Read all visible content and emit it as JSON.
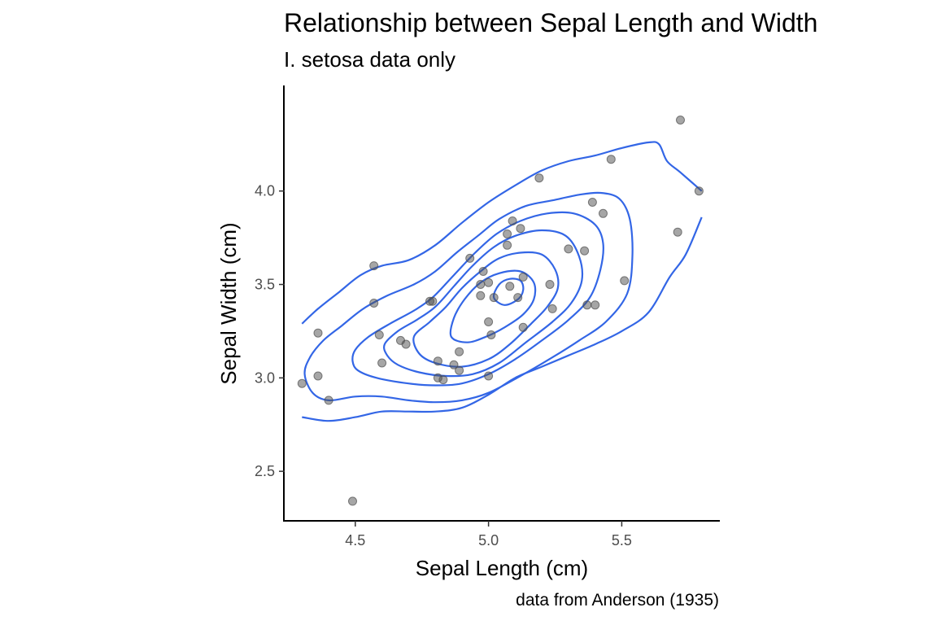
{
  "chart_data": {
    "type": "scatter",
    "title": "Relationship between Sepal Length and Width",
    "subtitle": "I. setosa data only",
    "caption": "data from Anderson (1935)",
    "xlabel": "Sepal Length (cm)",
    "ylabel": "Sepal Width (cm)",
    "xlim": [
      4.235,
      5.865
    ],
    "ylim": [
      2.235,
      4.565
    ],
    "x_ticks": [
      {
        "value": 4.5,
        "label": "4.5"
      },
      {
        "value": 5.0,
        "label": "5.0"
      },
      {
        "value": 5.5,
        "label": "5.5"
      }
    ],
    "y_ticks": [
      {
        "value": 2.5,
        "label": "2.5"
      },
      {
        "value": 3.0,
        "label": "3.0"
      },
      {
        "value": 3.5,
        "label": "3.5"
      },
      {
        "value": 4.0,
        "label": "4.0"
      }
    ],
    "grid": false,
    "legend": "none",
    "point_color": "#4d4d4d",
    "contour_color": "#3366e6",
    "points": [
      {
        "x": 4.3,
        "y": 2.97
      },
      {
        "x": 4.36,
        "y": 3.24
      },
      {
        "x": 4.36,
        "y": 3.01
      },
      {
        "x": 4.4,
        "y": 2.88
      },
      {
        "x": 4.49,
        "y": 2.34
      },
      {
        "x": 4.57,
        "y": 3.6
      },
      {
        "x": 4.57,
        "y": 3.4
      },
      {
        "x": 4.59,
        "y": 3.23
      },
      {
        "x": 4.6,
        "y": 3.08
      },
      {
        "x": 4.67,
        "y": 3.2
      },
      {
        "x": 4.69,
        "y": 3.18
      },
      {
        "x": 4.78,
        "y": 3.41
      },
      {
        "x": 4.79,
        "y": 3.41
      },
      {
        "x": 4.81,
        "y": 3.09
      },
      {
        "x": 4.81,
        "y": 3.0
      },
      {
        "x": 4.83,
        "y": 2.99
      },
      {
        "x": 4.87,
        "y": 3.07
      },
      {
        "x": 4.89,
        "y": 3.04
      },
      {
        "x": 4.89,
        "y": 3.14
      },
      {
        "x": 4.93,
        "y": 3.64
      },
      {
        "x": 4.97,
        "y": 3.44
      },
      {
        "x": 4.97,
        "y": 3.5
      },
      {
        "x": 4.98,
        "y": 3.57
      },
      {
        "x": 5.0,
        "y": 3.51
      },
      {
        "x": 5.0,
        "y": 3.3
      },
      {
        "x": 5.0,
        "y": 3.01
      },
      {
        "x": 5.01,
        "y": 3.23
      },
      {
        "x": 5.02,
        "y": 3.43
      },
      {
        "x": 5.07,
        "y": 3.77
      },
      {
        "x": 5.07,
        "y": 3.71
      },
      {
        "x": 5.08,
        "y": 3.49
      },
      {
        "x": 5.09,
        "y": 3.84
      },
      {
        "x": 5.11,
        "y": 3.43
      },
      {
        "x": 5.12,
        "y": 3.8
      },
      {
        "x": 5.13,
        "y": 3.54
      },
      {
        "x": 5.13,
        "y": 3.27
      },
      {
        "x": 5.19,
        "y": 4.07
      },
      {
        "x": 5.23,
        "y": 3.5
      },
      {
        "x": 5.24,
        "y": 3.37
      },
      {
        "x": 5.3,
        "y": 3.69
      },
      {
        "x": 5.36,
        "y": 3.68
      },
      {
        "x": 5.37,
        "y": 3.39
      },
      {
        "x": 5.39,
        "y": 3.94
      },
      {
        "x": 5.4,
        "y": 3.39
      },
      {
        "x": 5.43,
        "y": 3.88
      },
      {
        "x": 5.46,
        "y": 4.17
      },
      {
        "x": 5.51,
        "y": 3.52
      },
      {
        "x": 5.71,
        "y": 3.78
      },
      {
        "x": 5.72,
        "y": 4.38
      },
      {
        "x": 5.79,
        "y": 4.0
      }
    ],
    "contours": [
      {
        "level": 1,
        "open": true,
        "path": [
          [
            4.3,
            3.29
          ],
          [
            4.36,
            3.37
          ],
          [
            4.44,
            3.46
          ],
          [
            4.52,
            3.55
          ],
          [
            4.6,
            3.6
          ],
          [
            4.7,
            3.63
          ],
          [
            4.8,
            3.71
          ],
          [
            4.9,
            3.83
          ],
          [
            5.0,
            3.94
          ],
          [
            5.1,
            4.03
          ],
          [
            5.2,
            4.11
          ],
          [
            5.3,
            4.16
          ],
          [
            5.4,
            4.19
          ],
          [
            5.5,
            4.23
          ],
          [
            5.6,
            4.26
          ],
          [
            5.64,
            4.25
          ],
          [
            5.67,
            4.16
          ],
          [
            5.72,
            4.1
          ],
          [
            5.8,
            4.0
          ]
        ]
      },
      {
        "level": 1,
        "open": true,
        "path": [
          [
            4.3,
            2.79
          ],
          [
            4.4,
            2.77
          ],
          [
            4.5,
            2.79
          ],
          [
            4.6,
            2.82
          ],
          [
            4.7,
            2.82
          ],
          [
            4.8,
            2.82
          ],
          [
            4.9,
            2.84
          ],
          [
            5.0,
            2.91
          ],
          [
            5.1,
            3.0
          ],
          [
            5.2,
            3.06
          ],
          [
            5.3,
            3.12
          ],
          [
            5.4,
            3.18
          ],
          [
            5.5,
            3.25
          ],
          [
            5.6,
            3.35
          ],
          [
            5.68,
            3.54
          ],
          [
            5.74,
            3.66
          ],
          [
            5.8,
            3.86
          ]
        ]
      },
      {
        "level": 2,
        "path": [
          [
            4.31,
            3.02
          ],
          [
            4.33,
            3.11
          ],
          [
            4.38,
            3.2
          ],
          [
            4.45,
            3.28
          ],
          [
            4.53,
            3.37
          ],
          [
            4.62,
            3.44
          ],
          [
            4.72,
            3.5
          ],
          [
            4.8,
            3.57
          ],
          [
            4.88,
            3.67
          ],
          [
            4.96,
            3.76
          ],
          [
            5.04,
            3.85
          ],
          [
            5.14,
            3.92
          ],
          [
            5.24,
            3.95
          ],
          [
            5.34,
            3.98
          ],
          [
            5.42,
            3.99
          ],
          [
            5.49,
            3.96
          ],
          [
            5.53,
            3.85
          ],
          [
            5.54,
            3.65
          ],
          [
            5.52,
            3.45
          ],
          [
            5.44,
            3.3
          ],
          [
            5.34,
            3.2
          ],
          [
            5.24,
            3.11
          ],
          [
            5.12,
            3.01
          ],
          [
            5.0,
            2.92
          ],
          [
            4.9,
            2.88
          ],
          [
            4.8,
            2.87
          ],
          [
            4.7,
            2.88
          ],
          [
            4.6,
            2.9
          ],
          [
            4.5,
            2.9
          ],
          [
            4.4,
            2.88
          ],
          [
            4.34,
            2.92
          ]
        ]
      },
      {
        "level": 3,
        "path": [
          [
            4.49,
            3.09
          ],
          [
            4.5,
            3.15
          ],
          [
            4.55,
            3.22
          ],
          [
            4.63,
            3.29
          ],
          [
            4.72,
            3.36
          ],
          [
            4.79,
            3.43
          ],
          [
            4.87,
            3.55
          ],
          [
            4.95,
            3.67
          ],
          [
            5.03,
            3.77
          ],
          [
            5.12,
            3.84
          ],
          [
            5.22,
            3.88
          ],
          [
            5.32,
            3.88
          ],
          [
            5.4,
            3.82
          ],
          [
            5.43,
            3.72
          ],
          [
            5.42,
            3.58
          ],
          [
            5.38,
            3.43
          ],
          [
            5.3,
            3.31
          ],
          [
            5.2,
            3.2
          ],
          [
            5.1,
            3.1
          ],
          [
            5.0,
            3.02
          ],
          [
            4.9,
            2.97
          ],
          [
            4.8,
            2.96
          ],
          [
            4.7,
            2.97
          ],
          [
            4.58,
            3.0
          ],
          [
            4.51,
            3.04
          ]
        ]
      },
      {
        "level": 4,
        "path": [
          [
            4.61,
            3.18
          ],
          [
            4.66,
            3.25
          ],
          [
            4.73,
            3.31
          ],
          [
            4.8,
            3.38
          ],
          [
            4.87,
            3.49
          ],
          [
            4.94,
            3.6
          ],
          [
            5.02,
            3.7
          ],
          [
            5.1,
            3.76
          ],
          [
            5.2,
            3.79
          ],
          [
            5.29,
            3.76
          ],
          [
            5.34,
            3.65
          ],
          [
            5.35,
            3.52
          ],
          [
            5.31,
            3.4
          ],
          [
            5.24,
            3.3
          ],
          [
            5.14,
            3.19
          ],
          [
            5.04,
            3.08
          ],
          [
            4.94,
            3.02
          ],
          [
            4.84,
            3.01
          ],
          [
            4.74,
            3.03
          ],
          [
            4.66,
            3.07
          ],
          [
            4.62,
            3.12
          ]
        ]
      },
      {
        "level": 5,
        "path": [
          [
            4.72,
            3.22
          ],
          [
            4.78,
            3.3
          ],
          [
            4.84,
            3.38
          ],
          [
            4.9,
            3.48
          ],
          [
            4.97,
            3.57
          ],
          [
            5.04,
            3.64
          ],
          [
            5.12,
            3.67
          ],
          [
            5.2,
            3.66
          ],
          [
            5.25,
            3.58
          ],
          [
            5.26,
            3.48
          ],
          [
            5.22,
            3.38
          ],
          [
            5.16,
            3.29
          ],
          [
            5.08,
            3.18
          ],
          [
            5.0,
            3.1
          ],
          [
            4.9,
            3.06
          ],
          [
            4.8,
            3.08
          ],
          [
            4.74,
            3.13
          ]
        ]
      },
      {
        "level": 6,
        "path": [
          [
            4.86,
            3.22
          ],
          [
            4.87,
            3.32
          ],
          [
            4.91,
            3.42
          ],
          [
            4.97,
            3.51
          ],
          [
            5.04,
            3.56
          ],
          [
            5.12,
            3.57
          ],
          [
            5.17,
            3.51
          ],
          [
            5.17,
            3.42
          ],
          [
            5.13,
            3.34
          ],
          [
            5.06,
            3.27
          ],
          [
            4.99,
            3.22
          ],
          [
            4.92,
            3.19
          ]
        ]
      },
      {
        "level": 7,
        "path": [
          [
            5.02,
            3.43
          ],
          [
            5.04,
            3.5
          ],
          [
            5.08,
            3.53
          ],
          [
            5.12,
            3.52
          ],
          [
            5.13,
            3.47
          ],
          [
            5.11,
            3.42
          ],
          [
            5.06,
            3.39
          ]
        ]
      }
    ]
  }
}
